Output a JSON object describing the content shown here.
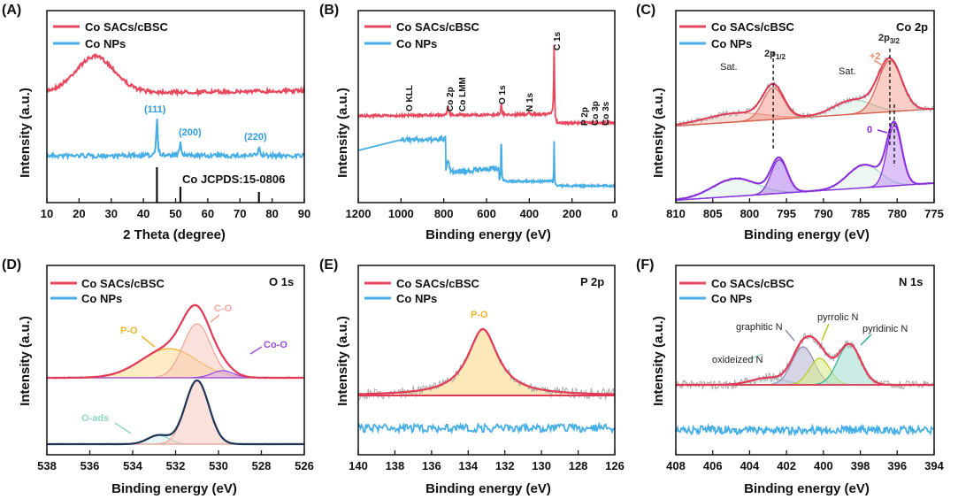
{
  "figure": {
    "legend_series": [
      "Co SACs/cBSC",
      "Co NPs"
    ],
    "colors": {
      "sac": "#e8485d",
      "nps": "#45aee6",
      "fit_sac": "#e23a56",
      "fit_raw": "#a9a9a9",
      "metal": "#8a2be2"
    }
  },
  "chart_data": [
    {
      "id": "A",
      "type": "line",
      "title": "(A)",
      "xlabel": "2 Theta (degree)",
      "ylabel": "Intensity (a.u.)",
      "xlim": [
        10,
        90
      ],
      "xticks": [
        "10",
        "20",
        "30",
        "40",
        "50",
        "60",
        "70",
        "80",
        "90"
      ],
      "series": [
        {
          "name": "Co SACs/cBSC",
          "description": "broad amorphous hump",
          "peaks_2theta": [
            25
          ]
        },
        {
          "name": "Co NPs",
          "peaks_2theta": [
            44.2,
            51.5,
            75.9
          ]
        }
      ],
      "annotations": [
        "(111)",
        "(200)",
        "(220)"
      ],
      "reference": {
        "label": "Co JCPDS:15-0806",
        "positions": [
          44.2,
          51.5,
          75.9
        ]
      }
    },
    {
      "id": "B",
      "type": "line",
      "title": "(B)",
      "xlabel": "Binding energy (eV)",
      "ylabel": "Intensity (a.u.)",
      "xlim": [
        1200,
        0
      ],
      "xticks": [
        "1200",
        "1000",
        "800",
        "600",
        "400",
        "200",
        "0"
      ],
      "series": [
        {
          "name": "Co SACs/cBSC",
          "peaks_eV": [
            780,
            531,
            400,
            284,
            133
          ]
        },
        {
          "name": "Co NPs",
          "peaks_eV": [
            780,
            531,
            284
          ]
        }
      ],
      "annotations": [
        "O KLL",
        "Co 2p",
        "Co LMM",
        "O 1s",
        "N 1s",
        "C 1s",
        "P 2p",
        "Co 3p",
        "Co 3s"
      ]
    },
    {
      "id": "C",
      "type": "line",
      "title": "(C)",
      "corner_label": "Co 2p",
      "xlabel": "Binding energy (eV)",
      "ylabel": "Intensity (a.u.)",
      "xlim": [
        810,
        775
      ],
      "xticks": [
        "810",
        "805",
        "800",
        "795",
        "790",
        "785",
        "780",
        "775"
      ],
      "series": [
        {
          "name": "Co SACs/cBSC",
          "peaks_eV": [
            796.8,
            786.0,
            781.0,
            802.0
          ]
        },
        {
          "name": "Co NPs",
          "peaks_eV": [
            796.0,
            784.5,
            780.4,
            802.0
          ]
        }
      ],
      "annotations": [
        "Sat.",
        "Sat.",
        "+2",
        "0"
      ],
      "peak_labels": {
        "2p_half": {
          "main": "2p",
          "sub": "1/2"
        },
        "2p_three_half": {
          "main": "2p",
          "sub": "3/2"
        }
      }
    },
    {
      "id": "D",
      "type": "line",
      "title": "(D)",
      "corner_label": "O 1s",
      "xlabel": "Binding energy (eV)",
      "ylabel": "Intensity (a.u.)",
      "xlim": [
        538,
        526
      ],
      "xticks": [
        "538",
        "536",
        "534",
        "532",
        "530",
        "528",
        "526"
      ],
      "series": [
        {
          "name": "Co SACs/cBSC",
          "components": [
            {
              "label": "P-O",
              "center_eV": 532.3
            },
            {
              "label": "C-O",
              "center_eV": 531.0
            },
            {
              "label": "Co-O",
              "center_eV": 529.8
            }
          ]
        },
        {
          "name": "Co NPs",
          "components": [
            {
              "label": "C-O",
              "center_eV": 531.0
            },
            {
              "label": "O-ads",
              "center_eV": 532.8
            }
          ]
        }
      ],
      "annotations": [
        "P-O",
        "C-O",
        "Co-O",
        "O-ads"
      ]
    },
    {
      "id": "E",
      "type": "line",
      "title": "(E)",
      "corner_label": "P 2p",
      "xlabel": "Binding energy (eV)",
      "ylabel": "Intensity (a.u.)",
      "xlim": [
        140,
        126
      ],
      "xticks": [
        "140",
        "138",
        "136",
        "134",
        "132",
        "130",
        "128",
        "126"
      ],
      "series": [
        {
          "name": "Co SACs/cBSC",
          "components": [
            {
              "label": "P-O",
              "center_eV": 133.2
            }
          ]
        },
        {
          "name": "Co NPs",
          "description": "flat noisy baseline"
        }
      ],
      "annotations": [
        "P-O"
      ]
    },
    {
      "id": "F",
      "type": "line",
      "title": "(F)",
      "corner_label": "N 1s",
      "xlabel": "Binding energy (eV)",
      "ylabel": "Intensity (a.u.)",
      "xlim": [
        408,
        394
      ],
      "xticks": [
        "408",
        "406",
        "404",
        "402",
        "400",
        "398",
        "396",
        "394"
      ],
      "series": [
        {
          "name": "Co SACs/cBSC",
          "components": [
            {
              "label": "oxideized N",
              "center_eV": 403.0
            },
            {
              "label": "graphitic N",
              "center_eV": 401.1
            },
            {
              "label": "pyrrolic N",
              "center_eV": 400.2
            },
            {
              "label": "pyridinic N",
              "center_eV": 398.6
            }
          ]
        },
        {
          "name": "Co NPs",
          "description": "flat noisy baseline"
        }
      ],
      "annotations": [
        "oxideized N",
        "graphitic N",
        "pyrrolic N",
        "pyridinic N"
      ]
    }
  ]
}
